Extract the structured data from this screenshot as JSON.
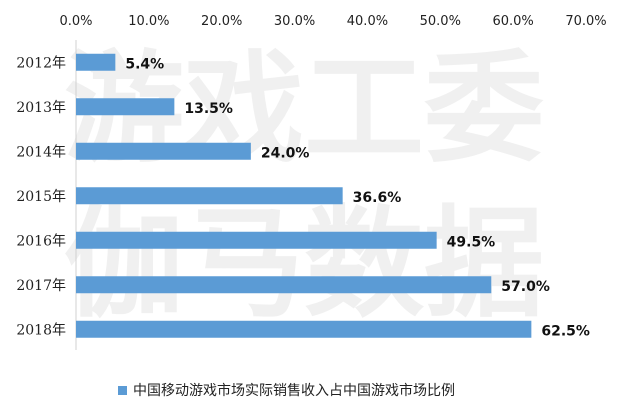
{
  "chart_data": {
    "type": "bar",
    "orientation": "horizontal",
    "categories": [
      "2012年",
      "2013年",
      "2014年",
      "2015年",
      "2016年",
      "2017年",
      "2018年"
    ],
    "series": [
      {
        "name": "中国移动游戏市场实际销售收入占中国游戏市场比例",
        "values": [
          5.4,
          13.5,
          24.0,
          36.6,
          49.5,
          57.0,
          62.5
        ]
      }
    ],
    "data_labels": [
      "5.4%",
      "13.5%",
      "24.0%",
      "36.6%",
      "49.5%",
      "57.0%",
      "62.5%"
    ],
    "xlim": [
      0,
      70
    ],
    "x_ticks": [
      "0.0%",
      "10.0%",
      "20.0%",
      "30.0%",
      "40.0%",
      "50.0%",
      "60.0%",
      "70.0%"
    ],
    "x_axis_position": "top",
    "grid": false,
    "legend_position": "bottom",
    "bar_color": "#5b9bd5"
  },
  "watermark": [
    "游戏工委",
    "伽马数据"
  ]
}
